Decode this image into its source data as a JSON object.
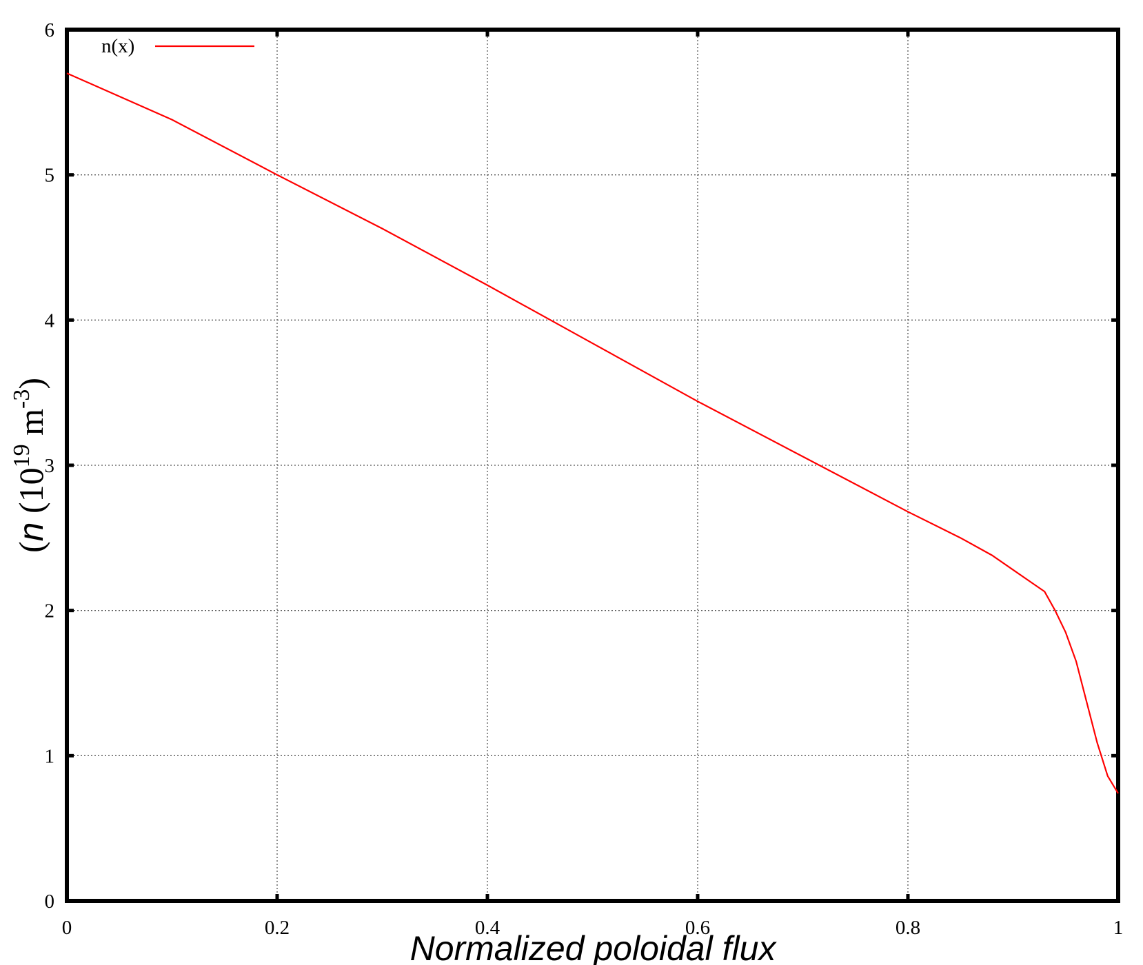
{
  "chart_data": {
    "type": "line",
    "xlabel": "Normalized poloidal flux",
    "ylabel": {
      "open": "(",
      "var": "n",
      "base": " (10",
      "exp1": "19",
      "unit": " m",
      "exp2": "-3",
      "close": ")"
    },
    "x": [
      0,
      0.1,
      0.2,
      0.3,
      0.4,
      0.5,
      0.6,
      0.7,
      0.8,
      0.85,
      0.88,
      0.9,
      0.92,
      0.93,
      0.94,
      0.95,
      0.96,
      0.97,
      0.98,
      0.99,
      1
    ],
    "series": [
      {
        "name": "n(x)",
        "color": "#ff0000",
        "values": [
          5.7,
          5.38,
          5.0,
          4.63,
          4.24,
          3.84,
          3.44,
          3.06,
          2.68,
          2.5,
          2.38,
          2.28,
          2.18,
          2.13,
          2.0,
          1.85,
          1.65,
          1.37,
          1.09,
          0.86,
          0.74
        ]
      }
    ],
    "xlim": [
      0,
      1
    ],
    "ylim": [
      0,
      6
    ],
    "xticks": [
      0,
      0.2,
      0.4,
      0.6,
      0.8,
      1
    ],
    "yticks": [
      0,
      1,
      2,
      3,
      4,
      5,
      6
    ],
    "grid": true,
    "legend": "top-left"
  }
}
